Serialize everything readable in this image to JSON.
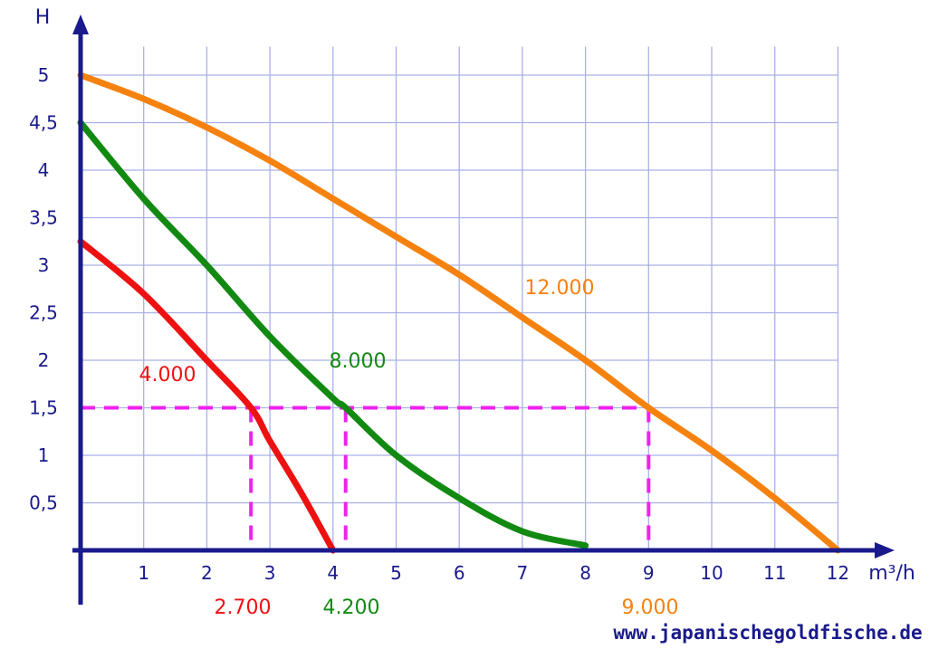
{
  "chart_data": {
    "type": "line",
    "ylabel": "H",
    "xlabel": "m³/h",
    "xlim": [
      0,
      12
    ],
    "ylim": [
      0,
      5
    ],
    "x_ticks": [
      "1",
      "2",
      "3",
      "4",
      "5",
      "6",
      "7",
      "8",
      "9",
      "10",
      "11",
      "12"
    ],
    "y_ticks": [
      "0,5",
      "1",
      "1,5",
      "2",
      "2,5",
      "3",
      "3,5",
      "4",
      "4,5",
      "5"
    ],
    "grid": true,
    "series": [
      {
        "name": "4.000",
        "color": "#ee1111",
        "x": [
          0,
          1,
          2,
          2.7,
          3,
          3.5,
          4.0
        ],
        "y": [
          3.25,
          2.7,
          2.0,
          1.5,
          1.15,
          0.6,
          0.0
        ]
      },
      {
        "name": "8.000",
        "color": "#128a12",
        "x": [
          0,
          1,
          2,
          3,
          4,
          4.2,
          5,
          6,
          7,
          8
        ],
        "y": [
          4.5,
          3.7,
          3.0,
          2.25,
          1.6,
          1.5,
          1.0,
          0.55,
          0.2,
          0.05
        ]
      },
      {
        "name": "12.000",
        "color": "#f5820f",
        "x": [
          0,
          1,
          2,
          3,
          4,
          5,
          6,
          7,
          8,
          9,
          10,
          11,
          12
        ],
        "y": [
          5.0,
          4.75,
          4.45,
          4.1,
          3.7,
          3.3,
          2.9,
          2.45,
          2.0,
          1.5,
          1.05,
          0.55,
          0.0
        ]
      }
    ],
    "reference_line": {
      "y": 1.5,
      "x_values": [
        2.7,
        4.2,
        9.0
      ],
      "color": "#ee22ee"
    },
    "annotations": [
      {
        "text": "2.700",
        "x": 2.7,
        "color": "#ee1111"
      },
      {
        "text": "4.200",
        "x": 4.2,
        "color": "#128a12"
      },
      {
        "text": "9.000",
        "x": 9.0,
        "color": "#f5820f"
      }
    ]
  },
  "footer": "www.japanischegoldfische.de",
  "colors": {
    "axis": "#1a1a8c",
    "grid": "#aab0e6",
    "text": "#1a1a8c"
  }
}
